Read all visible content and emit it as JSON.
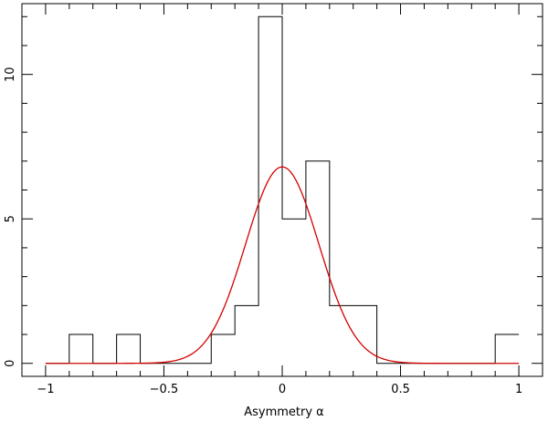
{
  "chart_data": {
    "type": "histogram",
    "xlabel": "Asymmetry α",
    "ylabel": "",
    "xlim": [
      -1.1,
      1.1
    ],
    "ylim": [
      -0.45,
      12.45
    ],
    "x_ticks": [
      {
        "value": -1,
        "label": "−1"
      },
      {
        "value": -0.5,
        "label": "−0.5"
      },
      {
        "value": 0,
        "label": "0"
      },
      {
        "value": 0.5,
        "label": "0.5"
      },
      {
        "value": 1,
        "label": "1"
      }
    ],
    "y_ticks": [
      {
        "value": 0,
        "label": "0"
      },
      {
        "value": 5,
        "label": "5"
      },
      {
        "value": 10,
        "label": "10"
      }
    ],
    "histogram": {
      "bin_edges": [
        -1.0,
        -0.9,
        -0.8,
        -0.7,
        -0.6,
        -0.5,
        -0.4,
        -0.3,
        -0.2,
        -0.1,
        0.0,
        0.1,
        0.2,
        0.3,
        0.4,
        0.5,
        0.6,
        0.7,
        0.8,
        0.9,
        1.0
      ],
      "counts": [
        0,
        1,
        0,
        1,
        0,
        0,
        0,
        1,
        2,
        12,
        5,
        7,
        2,
        2,
        0,
        0,
        0,
        0,
        0,
        1
      ],
      "color": "#000000"
    },
    "gaussian_fit": {
      "amplitude": 6.8,
      "mean": 0.0,
      "sigma": 0.155,
      "x_range": [
        -1.0,
        1.0
      ],
      "color": "#d40000"
    },
    "grid": false,
    "legend": "none"
  }
}
